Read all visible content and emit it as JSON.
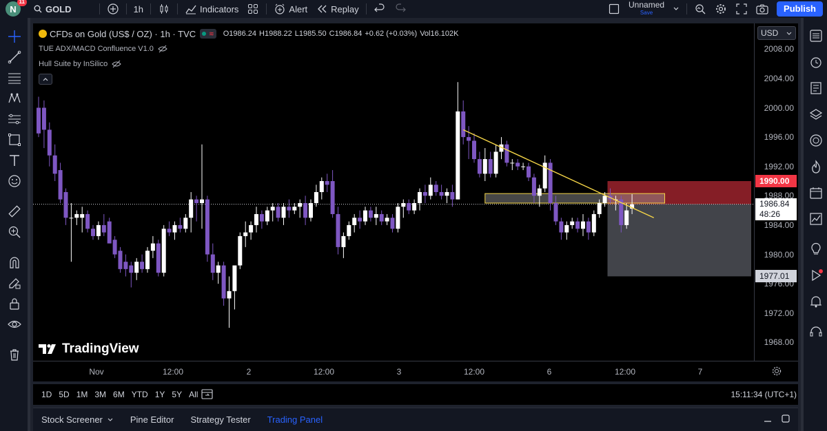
{
  "topbar": {
    "avatar_letter": "N",
    "notifications": "11",
    "symbol": "GOLD",
    "interval": "1h",
    "indicators": "Indicators",
    "alert": "Alert",
    "replay": "Replay",
    "layout_name": "Unnamed",
    "layout_status": "Save",
    "publish": "Publish"
  },
  "legend": {
    "title": "CFDs on Gold (US$ / OZ) · 1h · TVC",
    "open": "O1986.24",
    "high": "H1988.22",
    "low": "L1985.50",
    "close": "C1986.84",
    "change": "+0.62 (+0.03%)",
    "volume": "Vol16.102K",
    "indicator1": "TUE ADX/MACD Confluence V1.0",
    "indicator2": "Hull Suite by InSilico"
  },
  "price_scale": {
    "currency": "USD",
    "ticks": [
      "2008.00",
      "2004.00",
      "2000.00",
      "1996.00",
      "1992.00",
      "1988.00",
      "1984.00",
      "1980.00",
      "1976.00",
      "1972.00",
      "1968.00"
    ],
    "tick_values": [
      2008,
      2004,
      2000,
      1996,
      1992,
      1988,
      1984,
      1980,
      1976,
      1972,
      1968
    ],
    "target_label": "1990.00",
    "current_price": "1986.84",
    "countdown": "48:26",
    "stop_label": "1977.01"
  },
  "time_scale": {
    "labels": [
      "Nov",
      "12:00",
      "2",
      "12:00",
      "3",
      "12:00",
      "6",
      "12:00",
      "7"
    ]
  },
  "bottom": {
    "ranges": [
      "1D",
      "5D",
      "1M",
      "3M",
      "6M",
      "YTD",
      "1Y",
      "5Y",
      "All"
    ],
    "clock": "15:11:34 (UTC+1)"
  },
  "panels": {
    "tabs": [
      "Stock Screener",
      "Pine Editor",
      "Strategy Tester",
      "Trading Panel"
    ],
    "active": "Trading Panel"
  },
  "watermark": "TradingView",
  "colors": {
    "up": "#ffffff",
    "down": "#7e57c2",
    "trendline": "#f5d547",
    "target_zone": "#b22833",
    "stop_zone": "#787b86",
    "accent": "#2962ff"
  },
  "chart_data": {
    "type": "candlestick",
    "symbol": "GOLD",
    "interval": "1h",
    "ylim": [
      1965.5,
      2011.5
    ],
    "x_labels": [
      "Nov",
      "12:00",
      "2",
      "12:00",
      "3",
      "12:00",
      "6",
      "12:00",
      "7"
    ],
    "candles": [
      {
        "o": 2000.0,
        "h": 2001.5,
        "l": 1996.0,
        "c": 1996.5
      },
      {
        "o": 2000.0,
        "h": 2001.0,
        "l": 1994.5,
        "c": 1997.0
      },
      {
        "o": 1997.0,
        "h": 1998.0,
        "l": 1992.0,
        "c": 1993.5
      },
      {
        "o": 1993.5,
        "h": 1995.0,
        "l": 1990.0,
        "c": 1991.0
      },
      {
        "o": 1991.5,
        "h": 1992.5,
        "l": 1987.0,
        "c": 1987.5
      },
      {
        "o": 1988.5,
        "h": 1989.0,
        "l": 1984.0,
        "c": 1985.0
      },
      {
        "o": 1985.0,
        "h": 1987.0,
        "l": 1979.0,
        "c": 1985.0
      },
      {
        "o": 1985.0,
        "h": 1986.0,
        "l": 1984.0,
        "c": 1985.5
      },
      {
        "o": 1985.0,
        "h": 1986.5,
        "l": 1983.0,
        "c": 1985.5
      },
      {
        "o": 1985.5,
        "h": 1986.0,
        "l": 1983.0,
        "c": 1983.5
      },
      {
        "o": 1983.5,
        "h": 1984.0,
        "l": 1982.0,
        "c": 1982.5
      },
      {
        "o": 1982.5,
        "h": 1984.5,
        "l": 1982.0,
        "c": 1984.0
      },
      {
        "o": 1984.0,
        "h": 1985.5,
        "l": 1982.5,
        "c": 1983.0
      },
      {
        "o": 1984.5,
        "h": 1985.0,
        "l": 1981.5,
        "c": 1981.5
      },
      {
        "o": 1982.0,
        "h": 1982.5,
        "l": 1979.5,
        "c": 1980.0
      },
      {
        "o": 1980.5,
        "h": 1981.0,
        "l": 1977.5,
        "c": 1978.0
      },
      {
        "o": 1979.0,
        "h": 1980.0,
        "l": 1977.0,
        "c": 1978.0
      },
      {
        "o": 1978.5,
        "h": 1979.0,
        "l": 1975.5,
        "c": 1977.5
      },
      {
        "o": 1977.5,
        "h": 1979.5,
        "l": 1976.5,
        "c": 1979.0
      },
      {
        "o": 1979.0,
        "h": 1980.0,
        "l": 1977.5,
        "c": 1978.0
      },
      {
        "o": 1978.0,
        "h": 1981.0,
        "l": 1977.5,
        "c": 1980.5
      },
      {
        "o": 1980.5,
        "h": 1982.5,
        "l": 1979.5,
        "c": 1981.5
      },
      {
        "o": 1981.5,
        "h": 1982.0,
        "l": 1977.0,
        "c": 1977.5
      },
      {
        "o": 1977.5,
        "h": 1984.0,
        "l": 1977.0,
        "c": 1983.5
      },
      {
        "o": 1983.5,
        "h": 1984.5,
        "l": 1982.5,
        "c": 1983.0
      },
      {
        "o": 1983.0,
        "h": 1984.5,
        "l": 1982.0,
        "c": 1984.0
      },
      {
        "o": 1984.0,
        "h": 1985.0,
        "l": 1983.0,
        "c": 1983.5
      },
      {
        "o": 1983.5,
        "h": 1985.5,
        "l": 1983.0,
        "c": 1985.0
      },
      {
        "o": 1985.0,
        "h": 1988.5,
        "l": 1983.0,
        "c": 1987.5
      },
      {
        "o": 1987.5,
        "h": 1988.0,
        "l": 1984.5,
        "c": 1987.0
      },
      {
        "o": 1987.0,
        "h": 1995.0,
        "l": 1983.5,
        "c": 1987.5
      },
      {
        "o": 1987.5,
        "h": 1988.0,
        "l": 1979.0,
        "c": 1980.0
      },
      {
        "o": 1980.0,
        "h": 1981.5,
        "l": 1976.5,
        "c": 1977.5
      },
      {
        "o": 1977.5,
        "h": 1979.0,
        "l": 1976.0,
        "c": 1978.5
      },
      {
        "o": 1978.5,
        "h": 1979.0,
        "l": 1973.0,
        "c": 1974.0
      },
      {
        "o": 1974.0,
        "h": 1977.0,
        "l": 1970.0,
        "c": 1975.0
      },
      {
        "o": 1975.0,
        "h": 1978.5,
        "l": 1972.5,
        "c": 1978.5
      },
      {
        "o": 1978.5,
        "h": 1983.0,
        "l": 1978.0,
        "c": 1982.5
      },
      {
        "o": 1982.5,
        "h": 1984.5,
        "l": 1981.0,
        "c": 1983.0
      },
      {
        "o": 1983.0,
        "h": 1984.5,
        "l": 1982.0,
        "c": 1984.0
      },
      {
        "o": 1984.0,
        "h": 1986.5,
        "l": 1983.0,
        "c": 1985.5
      },
      {
        "o": 1985.5,
        "h": 1986.0,
        "l": 1983.5,
        "c": 1984.5
      },
      {
        "o": 1984.5,
        "h": 1986.5,
        "l": 1984.0,
        "c": 1986.0
      },
      {
        "o": 1986.0,
        "h": 1987.0,
        "l": 1984.5,
        "c": 1986.5
      },
      {
        "o": 1986.5,
        "h": 1987.0,
        "l": 1984.5,
        "c": 1985.0
      },
      {
        "o": 1985.0,
        "h": 1987.0,
        "l": 1984.0,
        "c": 1986.5
      },
      {
        "o": 1986.5,
        "h": 1987.5,
        "l": 1985.0,
        "c": 1986.0
      },
      {
        "o": 1986.0,
        "h": 1987.0,
        "l": 1985.5,
        "c": 1986.5
      },
      {
        "o": 1986.5,
        "h": 1987.5,
        "l": 1985.0,
        "c": 1987.0
      },
      {
        "o": 1987.0,
        "h": 1988.0,
        "l": 1984.0,
        "c": 1985.0
      },
      {
        "o": 1985.0,
        "h": 1987.5,
        "l": 1984.5,
        "c": 1987.0
      },
      {
        "o": 1987.0,
        "h": 1989.5,
        "l": 1986.5,
        "c": 1988.5
      },
      {
        "o": 1988.5,
        "h": 1990.5,
        "l": 1987.5,
        "c": 1990.0
      },
      {
        "o": 1990.0,
        "h": 1991.0,
        "l": 1988.5,
        "c": 1989.5
      },
      {
        "o": 1990.0,
        "h": 1991.5,
        "l": 1985.0,
        "c": 1985.5
      },
      {
        "o": 1985.5,
        "h": 1986.5,
        "l": 1980.0,
        "c": 1981.0
      },
      {
        "o": 1981.0,
        "h": 1983.0,
        "l": 1979.5,
        "c": 1982.5
      },
      {
        "o": 1982.5,
        "h": 1984.5,
        "l": 1982.0,
        "c": 1984.0
      },
      {
        "o": 1984.0,
        "h": 1985.5,
        "l": 1983.0,
        "c": 1985.0
      },
      {
        "o": 1985.0,
        "h": 1986.0,
        "l": 1983.5,
        "c": 1984.5
      },
      {
        "o": 1984.5,
        "h": 1986.5,
        "l": 1984.0,
        "c": 1986.0
      },
      {
        "o": 1986.0,
        "h": 1986.5,
        "l": 1984.5,
        "c": 1985.0
      },
      {
        "o": 1985.0,
        "h": 1986.5,
        "l": 1984.0,
        "c": 1985.5
      },
      {
        "o": 1985.5,
        "h": 1986.0,
        "l": 1984.0,
        "c": 1984.5
      },
      {
        "o": 1984.5,
        "h": 1985.5,
        "l": 1984.0,
        "c": 1985.0
      },
      {
        "o": 1985.0,
        "h": 1985.5,
        "l": 1983.0,
        "c": 1983.5
      },
      {
        "o": 1983.5,
        "h": 1987.0,
        "l": 1983.0,
        "c": 1986.5
      },
      {
        "o": 1986.5,
        "h": 1987.5,
        "l": 1985.0,
        "c": 1987.0
      },
      {
        "o": 1987.0,
        "h": 1987.5,
        "l": 1985.5,
        "c": 1986.0
      },
      {
        "o": 1986.0,
        "h": 1987.5,
        "l": 1985.5,
        "c": 1987.0
      },
      {
        "o": 1987.0,
        "h": 1989.0,
        "l": 1986.0,
        "c": 1988.5
      },
      {
        "o": 1988.5,
        "h": 1989.5,
        "l": 1987.0,
        "c": 1988.0
      },
      {
        "o": 1988.0,
        "h": 1990.5,
        "l": 1987.5,
        "c": 1989.5
      },
      {
        "o": 1989.5,
        "h": 1990.0,
        "l": 1988.0,
        "c": 1988.5
      },
      {
        "o": 1988.5,
        "h": 1989.5,
        "l": 1987.5,
        "c": 1988.0
      },
      {
        "o": 1988.0,
        "h": 1989.0,
        "l": 1987.0,
        "c": 1988.5
      },
      {
        "o": 1988.5,
        "h": 1989.5,
        "l": 1986.5,
        "c": 1987.5
      },
      {
        "o": 1987.5,
        "h": 2003.5,
        "l": 1987.5,
        "c": 1999.5
      },
      {
        "o": 1999.5,
        "h": 2001.0,
        "l": 1995.0,
        "c": 1996.0
      },
      {
        "o": 1996.0,
        "h": 1997.5,
        "l": 1993.0,
        "c": 1995.5
      },
      {
        "o": 1995.5,
        "h": 1996.5,
        "l": 1992.5,
        "c": 1993.0
      },
      {
        "o": 1993.0,
        "h": 1994.0,
        "l": 1990.5,
        "c": 1991.0
      },
      {
        "o": 1991.0,
        "h": 1994.5,
        "l": 1990.0,
        "c": 1993.0
      },
      {
        "o": 1993.0,
        "h": 1994.0,
        "l": 1990.5,
        "c": 1991.0
      },
      {
        "o": 1991.0,
        "h": 1995.0,
        "l": 1990.5,
        "c": 1994.0
      },
      {
        "o": 1994.0,
        "h": 1996.0,
        "l": 1993.0,
        "c": 1995.0
      },
      {
        "o": 1995.0,
        "h": 1995.5,
        "l": 1992.0,
        "c": 1992.5
      },
      {
        "o": 1992.5,
        "h": 1993.0,
        "l": 1991.5,
        "c": 1992.5
      },
      {
        "o": 1992.5,
        "h": 1993.0,
        "l": 1991.5,
        "c": 1992.0
      },
      {
        "o": 1992.0,
        "h": 1992.5,
        "l": 1991.5,
        "c": 1992.0
      },
      {
        "o": 1992.0,
        "h": 1992.5,
        "l": 1990.0,
        "c": 1990.5
      },
      {
        "o": 1990.5,
        "h": 1991.0,
        "l": 1987.0,
        "c": 1988.0
      },
      {
        "o": 1988.0,
        "h": 1989.5,
        "l": 1986.5,
        "c": 1989.0
      },
      {
        "o": 1989.0,
        "h": 1993.5,
        "l": 1988.5,
        "c": 1992.5
      },
      {
        "o": 1992.5,
        "h": 1993.0,
        "l": 1986.0,
        "c": 1987.0
      },
      {
        "o": 1987.0,
        "h": 1988.0,
        "l": 1984.0,
        "c": 1984.5
      },
      {
        "o": 1984.5,
        "h": 1985.0,
        "l": 1982.0,
        "c": 1983.0
      },
      {
        "o": 1983.0,
        "h": 1984.5,
        "l": 1982.0,
        "c": 1984.0
      },
      {
        "o": 1984.0,
        "h": 1985.0,
        "l": 1983.5,
        "c": 1984.5
      },
      {
        "o": 1984.5,
        "h": 1985.0,
        "l": 1983.0,
        "c": 1983.5
      },
      {
        "o": 1983.5,
        "h": 1985.5,
        "l": 1982.5,
        "c": 1984.5
      },
      {
        "o": 1984.5,
        "h": 1985.0,
        "l": 1982.0,
        "c": 1983.0
      },
      {
        "o": 1983.0,
        "h": 1986.0,
        "l": 1982.5,
        "c": 1985.5
      },
      {
        "o": 1985.5,
        "h": 1987.5,
        "l": 1985.0,
        "c": 1987.0
      },
      {
        "o": 1987.0,
        "h": 1988.5,
        "l": 1986.5,
        "c": 1988.0
      },
      {
        "o": 1988.0,
        "h": 1989.0,
        "l": 1987.0,
        "c": 1987.5
      },
      {
        "o": 1987.5,
        "h": 1988.0,
        "l": 1986.0,
        "c": 1987.5
      },
      {
        "o": 1987.5,
        "h": 1988.0,
        "l": 1983.0,
        "c": 1984.0
      },
      {
        "o": 1984.0,
        "h": 1987.0,
        "l": 1983.5,
        "c": 1986.0
      },
      {
        "o": 1986.24,
        "h": 1988.22,
        "l": 1985.5,
        "c": 1986.84
      }
    ],
    "trendline": {
      "from": {
        "index": 78,
        "price": 1997.0
      },
      "to": {
        "index": 113,
        "price": 1985.0
      }
    },
    "supply_zone": {
      "from_index": 82,
      "to_index": 115,
      "top": 1988.3,
      "bottom": 1987.0
    },
    "position": {
      "from_index": 105,
      "entry": 1986.84,
      "target": 1990.0,
      "stop": 1977.01
    },
    "current_price": 1986.84
  }
}
